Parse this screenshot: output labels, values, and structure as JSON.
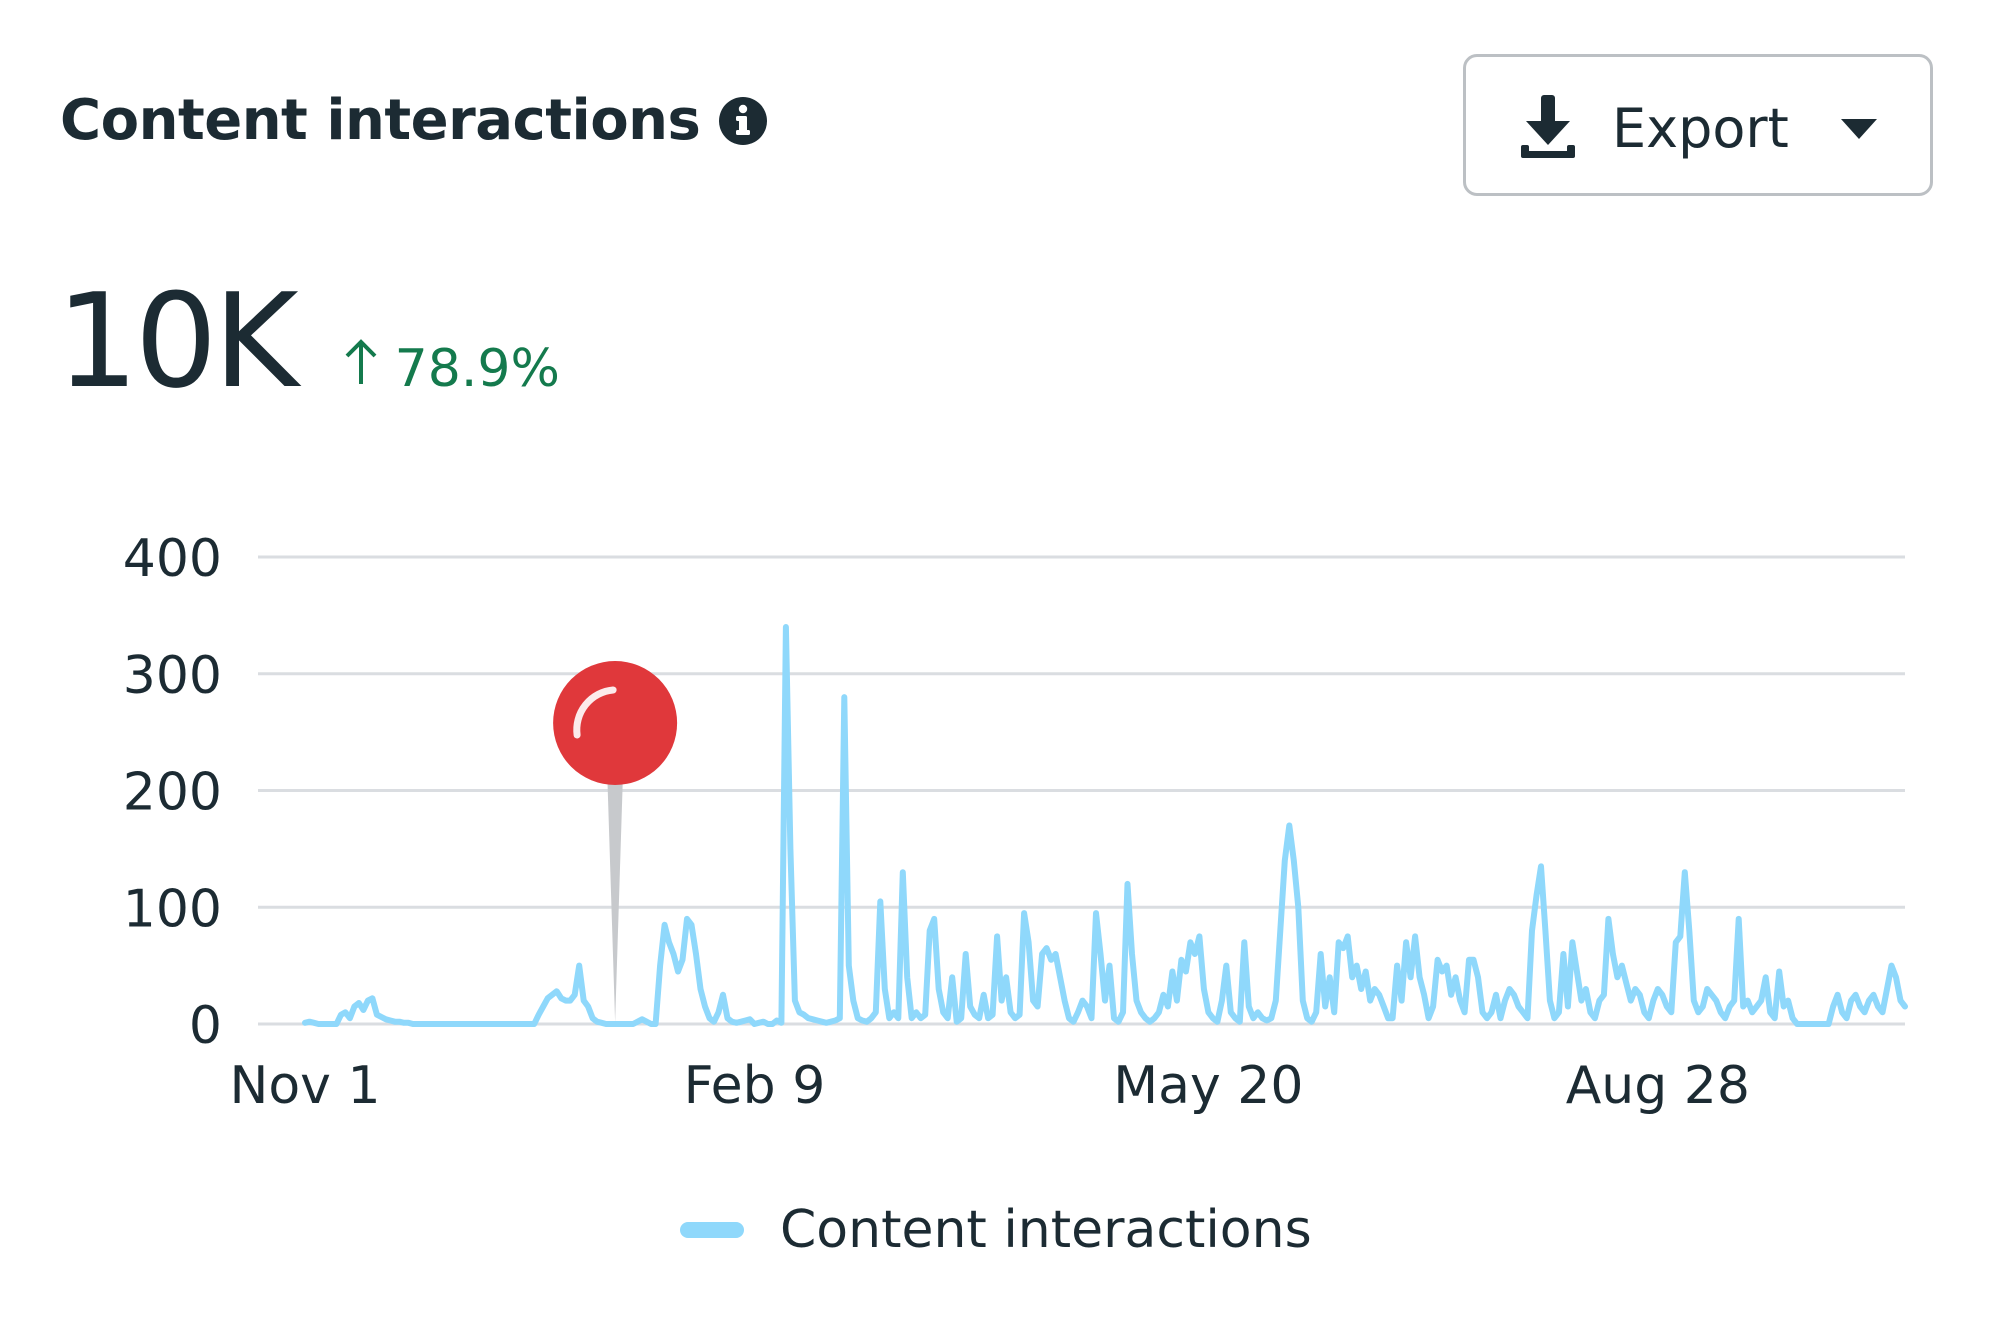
{
  "header": {
    "title": "Content interactions",
    "info_icon": "info-icon",
    "export_label": "Export",
    "export_icon": "download-icon",
    "export_caret_icon": "caret-down-icon"
  },
  "metric": {
    "value": "10K",
    "delta_arrow_icon": "arrow-up-icon",
    "delta_text": "78.9%",
    "delta_color": "#147a4d"
  },
  "colors": {
    "series": "#8fd8fb",
    "grid": "#dadde1",
    "text": "#1c2b33",
    "pin": "#e0383b"
  },
  "chart_data": {
    "type": "line",
    "title": "",
    "xlabel": "",
    "ylabel": "",
    "ylim": [
      0,
      400
    ],
    "yticks": [
      0,
      100,
      200,
      300,
      400
    ],
    "x_ticks": [
      {
        "label": "Nov 1",
        "day": 0
      },
      {
        "label": "Feb 9",
        "day": 100
      },
      {
        "label": "May 20",
        "day": 201
      },
      {
        "label": "Aug 28",
        "day": 301
      }
    ],
    "annotation": {
      "type": "pin",
      "day": 69
    },
    "legend": "bottom-center",
    "series": [
      {
        "name": "Content interactions",
        "values": [
          1,
          2,
          1,
          0,
          0,
          0,
          0,
          0,
          8,
          10,
          5,
          15,
          18,
          12,
          20,
          22,
          8,
          6,
          4,
          3,
          2,
          2,
          1,
          1,
          0,
          0,
          0,
          0,
          0,
          0,
          0,
          0,
          0,
          0,
          0,
          0,
          0,
          0,
          0,
          0,
          0,
          0,
          0,
          0,
          0,
          0,
          0,
          0,
          0,
          0,
          0,
          0,
          8,
          15,
          22,
          25,
          28,
          22,
          20,
          20,
          25,
          50,
          20,
          15,
          5,
          2,
          1,
          0,
          0,
          0,
          0,
          0,
          0,
          0,
          2,
          4,
          2,
          0,
          0,
          50,
          85,
          70,
          60,
          45,
          55,
          90,
          85,
          60,
          30,
          15,
          5,
          2,
          10,
          25,
          5,
          2,
          1,
          2,
          3,
          4,
          0,
          1,
          2,
          0,
          0,
          3,
          1,
          340,
          150,
          20,
          10,
          8,
          5,
          4,
          3,
          2,
          1,
          2,
          3,
          5,
          280,
          50,
          20,
          5,
          3,
          2,
          5,
          10,
          105,
          30,
          5,
          10,
          5,
          130,
          40,
          5,
          10,
          5,
          8,
          80,
          90,
          30,
          10,
          5,
          40,
          2,
          5,
          60,
          15,
          8,
          5,
          25,
          5,
          8,
          75,
          20,
          40,
          10,
          5,
          8,
          95,
          70,
          20,
          15,
          60,
          65,
          55,
          60,
          40,
          20,
          5,
          2,
          10,
          20,
          15,
          5,
          95,
          60,
          20,
          50,
          5,
          2,
          10,
          120,
          60,
          20,
          10,
          5,
          2,
          5,
          10,
          25,
          15,
          45,
          20,
          55,
          45,
          70,
          60,
          75,
          30,
          10,
          5,
          2,
          20,
          50,
          10,
          5,
          2,
          70,
          15,
          5,
          10,
          5,
          3,
          5,
          20,
          80,
          140,
          170,
          140,
          100,
          20,
          5,
          2,
          10,
          60,
          15,
          40,
          10,
          70,
          65,
          75,
          40,
          50,
          30,
          45,
          20,
          30,
          25,
          15,
          5,
          5,
          50,
          20,
          70,
          40,
          75,
          40,
          25,
          5,
          15,
          55,
          45,
          50,
          25,
          40,
          20,
          10,
          55,
          55,
          40,
          10,
          5,
          10,
          25,
          5,
          20,
          30,
          25,
          15,
          10,
          5,
          80,
          110,
          135,
          80,
          20,
          5,
          10,
          60,
          15,
          70,
          45,
          20,
          30,
          10,
          5,
          20,
          25,
          90,
          60,
          40,
          50,
          35,
          20,
          30,
          25,
          10,
          5,
          20,
          30,
          25,
          15,
          10,
          70,
          75,
          130,
          80,
          20,
          10,
          15,
          30,
          25,
          20,
          10,
          5,
          15,
          20,
          90,
          15,
          20,
          10,
          15,
          20,
          40,
          10,
          5,
          45,
          15,
          20,
          5,
          0,
          0,
          0,
          0,
          0,
          0,
          0,
          0,
          15,
          25,
          10,
          5,
          20,
          25,
          15,
          10,
          20,
          25,
          15,
          10,
          30,
          50,
          40,
          20,
          15
        ]
      }
    ]
  }
}
